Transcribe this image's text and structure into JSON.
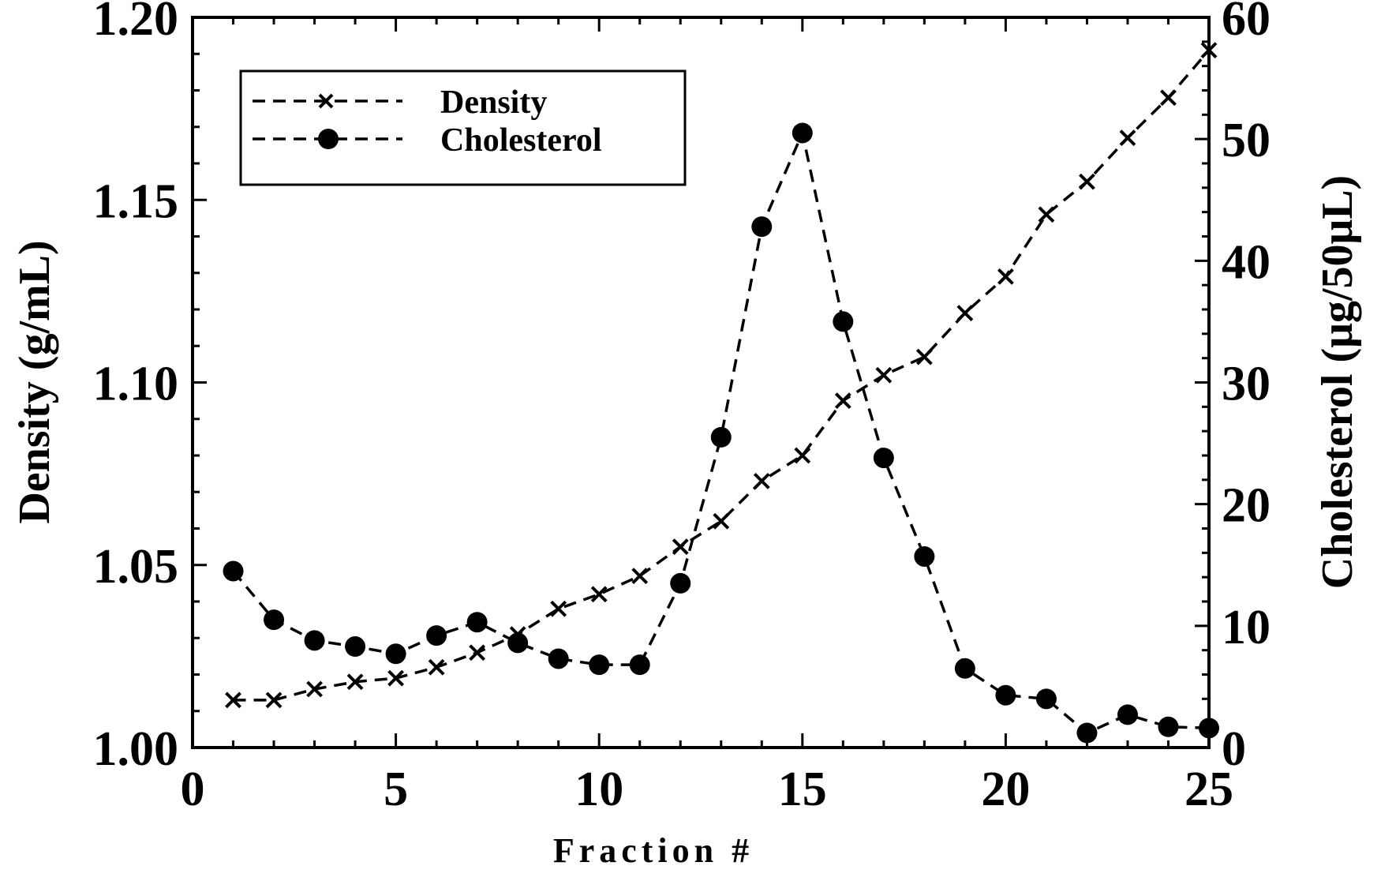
{
  "chart_data": {
    "type": "line",
    "xlabel": "Fraction #",
    "ylabel_left": "Density (g/mL)",
    "ylabel_right": "Cholesterol (μg/50μL)",
    "xlim": [
      0,
      25
    ],
    "ylim_left": [
      1.0,
      1.2
    ],
    "ylim_right": [
      0,
      60
    ],
    "x_ticks": [
      "0",
      "5",
      "10",
      "15",
      "20",
      "25"
    ],
    "y_ticks_left": [
      "1.00",
      "1.05",
      "1.10",
      "1.15",
      "1.20"
    ],
    "y_ticks_right": [
      "0",
      "10",
      "20",
      "30",
      "40",
      "50",
      "60"
    ],
    "grid": false,
    "legend_position": "top-left",
    "x": [
      1,
      2,
      3,
      4,
      5,
      6,
      7,
      8,
      9,
      10,
      11,
      12,
      13,
      14,
      15,
      16,
      17,
      18,
      19,
      20,
      21,
      22,
      23,
      24,
      25
    ],
    "series": [
      {
        "name": "Density",
        "axis": "left",
        "marker": "x",
        "values": [
          1.013,
          1.013,
          1.016,
          1.018,
          1.019,
          1.022,
          1.026,
          1.031,
          1.038,
          1.042,
          1.047,
          1.055,
          1.062,
          1.073,
          1.08,
          1.095,
          1.102,
          1.107,
          1.119,
          1.129,
          1.146,
          1.155,
          1.167,
          1.178,
          1.191
        ]
      },
      {
        "name": "Cholesterol",
        "axis": "right",
        "marker": "circle",
        "values": [
          14.5,
          10.5,
          8.8,
          8.3,
          7.7,
          9.2,
          10.3,
          8.6,
          7.3,
          6.8,
          6.8,
          13.5,
          25.5,
          42.8,
          50.5,
          35.0,
          23.8,
          15.7,
          6.5,
          4.3,
          4.0,
          1.2,
          2.7,
          1.7,
          1.6
        ]
      }
    ]
  }
}
